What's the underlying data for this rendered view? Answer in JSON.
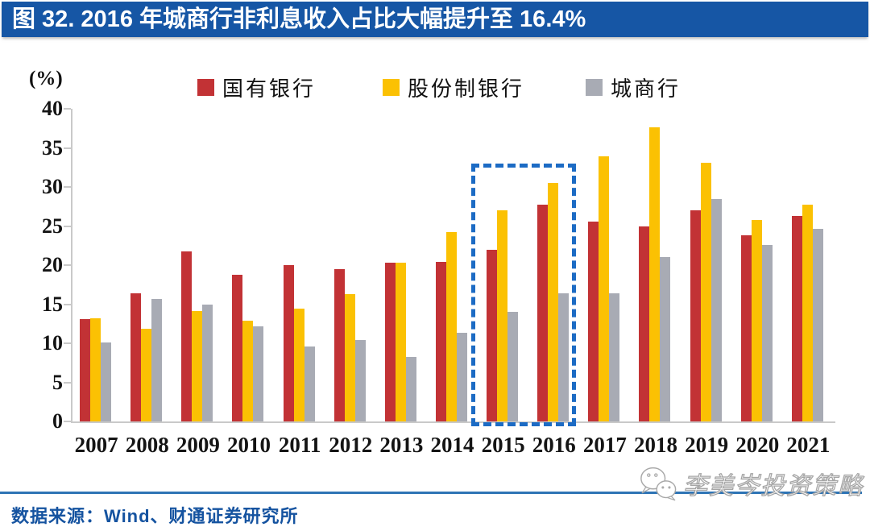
{
  "title_bar": {
    "label": "图 32. 2016 年城商行非利息收入占比大幅提升至 16.4%"
  },
  "chart_data": {
    "type": "bar",
    "title": "图 32. 2016 年城商行非利息收入占比大幅提升至 16.4%",
    "unit_label": "(%)",
    "categories": [
      "2007",
      "2008",
      "2009",
      "2010",
      "2011",
      "2012",
      "2013",
      "2014",
      "2015",
      "2016",
      "2017",
      "2018",
      "2019",
      "2020",
      "2021"
    ],
    "series": [
      {
        "name": "国有银行",
        "color": "#C23235",
        "values": [
          13.1,
          16.4,
          21.8,
          18.8,
          20.0,
          19.5,
          20.3,
          20.4,
          22.0,
          27.7,
          25.6,
          24.9,
          27.0,
          23.8,
          26.3
        ]
      },
      {
        "name": "股份制银行",
        "color": "#FBC103",
        "values": [
          13.2,
          11.9,
          14.1,
          12.9,
          14.4,
          16.3,
          20.3,
          24.2,
          27.0,
          30.5,
          33.9,
          37.6,
          33.1,
          25.8,
          27.7
        ]
      },
      {
        "name": "城商行",
        "color": "#A8ABB4",
        "values": [
          10.1,
          15.7,
          15.0,
          12.2,
          9.6,
          10.4,
          8.3,
          11.3,
          14.0,
          16.4,
          16.4,
          21.0,
          28.5,
          22.6,
          24.6
        ]
      }
    ],
    "ylim": [
      0,
      40
    ],
    "ytick_step": 5,
    "grid": false,
    "legend_position": "top",
    "highlight_box": {
      "from": "2015",
      "to": "2016",
      "top_value": 33,
      "color": "#1C6BC4",
      "style": "dashed"
    }
  },
  "footer": {
    "source": "数据来源：Wind、财通证券研究所",
    "divider_color": "#2E74B5"
  },
  "watermark": {
    "icon": "wechat-icon",
    "text": "李美岑投资策略"
  },
  "colors": {
    "title_bar_bg": "#1656A5",
    "title_text": "#FFFFFF",
    "axis_line": "#C9C9C9",
    "tick_text": "#141414",
    "source_text": "#1553A0"
  }
}
